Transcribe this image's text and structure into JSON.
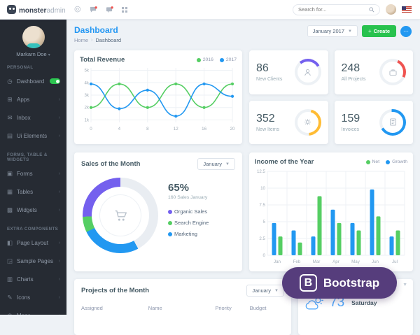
{
  "header": {
    "logo_bold": "monster",
    "logo_light": "admin",
    "search_placeholder": "Search for..."
  },
  "sidebar": {
    "user_name": "Markarn Doe",
    "sections": [
      {
        "label": "PERSONAL",
        "items": [
          {
            "label": "Dashboard",
            "icon": "speedometer-icon",
            "badge": true
          },
          {
            "label": "Apps",
            "icon": "apps-icon"
          },
          {
            "label": "Inbox",
            "icon": "inbox-icon"
          },
          {
            "label": "Ui Elements",
            "icon": "ui-elements-icon"
          }
        ]
      },
      {
        "label": "FORMS, TABLE & WIDGETS",
        "items": [
          {
            "label": "Forms",
            "icon": "forms-icon"
          },
          {
            "label": "Tables",
            "icon": "tables-icon"
          },
          {
            "label": "Widgets",
            "icon": "widgets-icon"
          }
        ]
      },
      {
        "label": "EXTRA COMPONENTS",
        "items": [
          {
            "label": "Page Layout",
            "icon": "page-layout-icon"
          },
          {
            "label": "Sample Pages",
            "icon": "sample-pages-icon"
          },
          {
            "label": "Charts",
            "icon": "charts-icon"
          },
          {
            "label": "Icons",
            "icon": "icons-icon"
          },
          {
            "label": "Maps",
            "icon": "maps-icon"
          }
        ]
      }
    ]
  },
  "page": {
    "title": "Dashboard",
    "breadcrumb_home": "Home",
    "breadcrumb_current": "Dashboard",
    "period": "January 2017",
    "create_label": "Create"
  },
  "revenue": {
    "title": "Total Revenue",
    "chart_data": {
      "type": "line",
      "x": [
        0,
        4,
        8,
        12,
        16,
        20
      ],
      "y_ticks": [
        {
          "v": 5,
          "t": "5k"
        },
        {
          "v": 4,
          "t": "4k"
        },
        {
          "v": 3,
          "t": "3k"
        },
        {
          "v": 2,
          "t": "2k"
        },
        {
          "v": 1,
          "t": "1k"
        }
      ],
      "ylim": [
        0.8,
        5.2
      ],
      "series": [
        {
          "name": "2016",
          "color": "#55ce63",
          "values": [
            2,
            3.9,
            2,
            3.9,
            2,
            3.9
          ]
        },
        {
          "name": "2017",
          "color": "#2298f1",
          "values": [
            3.9,
            1.9,
            3.4,
            1.3,
            3.9,
            2.9
          ]
        }
      ],
      "legend_position": "top-right"
    }
  },
  "stats": [
    {
      "value": "86",
      "label": "New Clients",
      "color": "#7460ee",
      "icon": "user-icon",
      "ring": {
        "start": 320,
        "sweep": 100
      }
    },
    {
      "value": "248",
      "label": "All Projects",
      "color": "#ef5350",
      "icon": "briefcase-icon",
      "ring": {
        "start": 25,
        "sweep": 90
      }
    },
    {
      "value": "352",
      "label": "New Items",
      "color": "#ffbc34",
      "icon": "gear-icon",
      "ring": {
        "start": 15,
        "sweep": 160
      }
    },
    {
      "value": "159",
      "label": "Invoices",
      "color": "#2298f1",
      "icon": "invoice-icon",
      "ring": {
        "start": 355,
        "sweep": 245
      }
    }
  ],
  "sales": {
    "title": "Sales of the Month",
    "month": "January",
    "percent": "65%",
    "subtitle": "160 Sales January",
    "legend": [
      {
        "label": "Organic Sales",
        "color": "#7460ee"
      },
      {
        "label": "Search Engine",
        "color": "#55ce63"
      },
      {
        "label": "Marketing",
        "color": "#2298f1"
      }
    ],
    "chart_data": {
      "type": "pie",
      "segments": [
        {
          "label": "Rest",
          "color": "#e9edf2",
          "from": 0,
          "to": 152
        },
        {
          "label": "Marketing",
          "color": "#2298f1",
          "from": 152,
          "to": 244
        },
        {
          "label": "Search Engine",
          "color": "#55ce63",
          "from": 244,
          "to": 268
        },
        {
          "label": "Organic Sales",
          "color": "#7460ee",
          "from": 268,
          "to": 360
        }
      ]
    }
  },
  "income": {
    "title": "Income of the Year",
    "chart_data": {
      "type": "bar",
      "categories": [
        "Jan",
        "Feb",
        "Mar",
        "Apr",
        "May",
        "Jun",
        "Jul"
      ],
      "y_ticks": [
        0,
        2.5,
        5,
        7.5,
        10,
        12.5
      ],
      "ylim": [
        0,
        12.5
      ],
      "series": [
        {
          "name": "Growth",
          "color": "#2298f1",
          "values": [
            4.8,
            3.7,
            2.8,
            6.8,
            4.8,
            9.8,
            2.8
          ]
        },
        {
          "name": "Net",
          "color": "#55ce63",
          "values": [
            2.8,
            1.9,
            8.8,
            4.8,
            3.7,
            5.8,
            3.7
          ]
        }
      ],
      "legend": [
        {
          "label": "Net",
          "color": "#55ce63"
        },
        {
          "label": "Growth",
          "color": "#2298f1"
        }
      ],
      "legend_position": "top-right"
    }
  },
  "projects": {
    "title": "Projects of the Month",
    "month": "January",
    "columns": [
      "Assigned",
      "Name",
      "Priority",
      "Budget"
    ]
  },
  "weather": {
    "temp": "73",
    "degree": "°",
    "day": "Saturday"
  },
  "badge": {
    "letter": "B",
    "label": "Bootstrap"
  }
}
